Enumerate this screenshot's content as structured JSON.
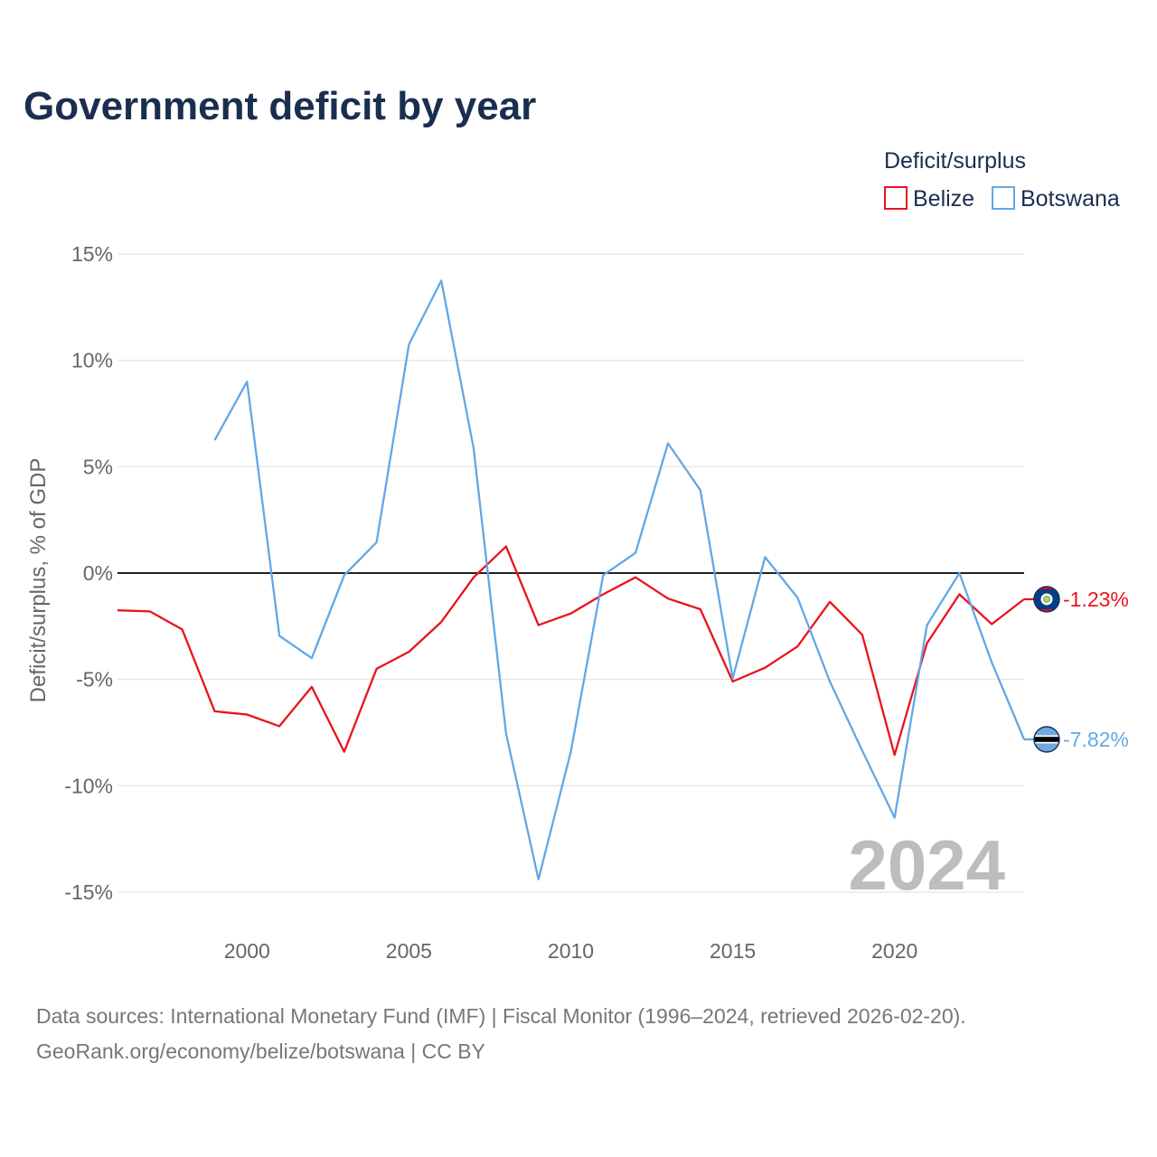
{
  "title": "Government deficit by year",
  "legend": {
    "title": "Deficit/surplus"
  },
  "year_watermark": "2024",
  "sources": {
    "line1": "Data sources: International Monetary Fund (IMF) | Fiscal Monitor (1996–2024, retrieved 2026-02-20).",
    "line2": "GeoRank.org/economy/belize/botswana | CC BY"
  },
  "chart_data": {
    "type": "line",
    "title": "Government deficit by year",
    "xlabel": "",
    "ylabel": "Deficit/surplus, % of GDP",
    "xlim": [
      1996,
      2024
    ],
    "ylim": [
      -17,
      15
    ],
    "x_ticks": [
      2000,
      2005,
      2010,
      2015,
      2020
    ],
    "y_ticks": [
      15,
      10,
      5,
      0,
      -5,
      -10,
      -15
    ],
    "y_tick_labels": [
      "15%",
      "10%",
      "5%",
      "0%",
      "-5%",
      "-10%",
      "-15%"
    ],
    "series": [
      {
        "name": "Belize",
        "color": "#e8141c",
        "x": [
          1996,
          1997,
          1998,
          1999,
          2000,
          2001,
          2002,
          2003,
          2004,
          2005,
          2006,
          2007,
          2008,
          2009,
          2010,
          2011,
          2012,
          2013,
          2014,
          2015,
          2016,
          2017,
          2018,
          2019,
          2020,
          2021,
          2022,
          2023,
          2024
        ],
        "values": [
          -1.75,
          -1.8,
          -2.65,
          -6.5,
          -6.65,
          -7.2,
          -5.35,
          -8.4,
          -4.5,
          -3.7,
          -2.3,
          -0.2,
          1.25,
          -2.45,
          -1.9,
          -1.0,
          -0.2,
          -1.2,
          -1.7,
          -5.1,
          -4.45,
          -3.45,
          -1.35,
          -2.9,
          -8.55,
          -3.3,
          -1.0,
          -2.4,
          -1.23
        ],
        "end_label": "-1.23%",
        "flag_icon": "belize-flag-icon"
      },
      {
        "name": "Botswana",
        "color": "#62a8e5",
        "x": [
          1999,
          2000,
          2001,
          2002,
          2003,
          2004,
          2005,
          2006,
          2007,
          2008,
          2009,
          2010,
          2011,
          2012,
          2013,
          2014,
          2015,
          2016,
          2017,
          2018,
          2019,
          2020,
          2021,
          2022,
          2023,
          2024
        ],
        "values": [
          6.25,
          9.0,
          -2.95,
          -4.0,
          -0.1,
          1.45,
          10.75,
          13.75,
          5.85,
          -7.55,
          -14.4,
          -8.4,
          -0.1,
          0.95,
          6.1,
          3.9,
          -4.95,
          0.75,
          -1.15,
          -5.1,
          -8.35,
          -11.5,
          -2.45,
          0.0,
          -4.2,
          -7.82
        ],
        "end_label": "-7.82%",
        "flag_icon": "botswana-flag-icon"
      }
    ]
  }
}
